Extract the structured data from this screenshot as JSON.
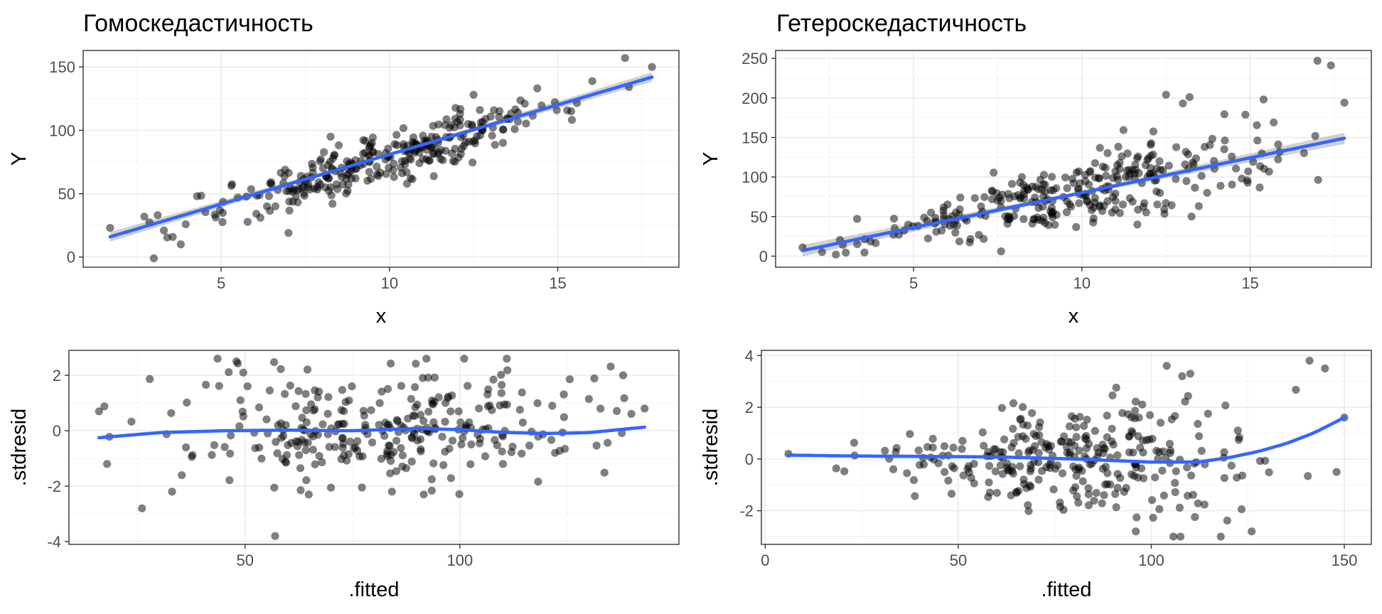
{
  "chart_data": [
    {
      "id": "homo_fit",
      "type": "scatter",
      "title": "Гомоскедастичность",
      "xlabel": "x",
      "ylabel": "Y",
      "xlim": [
        0.9,
        18.6
      ],
      "ylim": [
        -8,
        163
      ],
      "xticks": [
        5,
        10,
        15
      ],
      "yticks": [
        0,
        50,
        100,
        150
      ],
      "grid": true,
      "series": [
        {
          "kind": "points",
          "n": 300,
          "x_range": [
            1.7,
            17.8
          ],
          "trend": "linear",
          "intercept": -2,
          "slope": 8.1,
          "noise_sd": 10,
          "color": "#000000",
          "opacity": 0.5
        },
        {
          "kind": "smooth-line",
          "method": "linear",
          "x": [
            1.7,
            17.8
          ],
          "y": [
            16,
            142
          ],
          "color": "#3366FF",
          "band": true
        }
      ]
    },
    {
      "id": "hetero_fit",
      "type": "scatter",
      "title": "Гетероскедастичность",
      "xlabel": "x",
      "ylabel": "Y",
      "xlim": [
        0.9,
        18.6
      ],
      "ylim": [
        -14,
        260
      ],
      "xticks": [
        5,
        10,
        15
      ],
      "yticks": [
        0,
        50,
        100,
        150,
        200,
        250
      ],
      "grid": true,
      "series": [
        {
          "kind": "points",
          "n": 300,
          "x_range": [
            1.7,
            17.8
          ],
          "trend": "linear",
          "intercept": -7,
          "slope": 8.8,
          "noise": "increasing",
          "color": "#000000",
          "opacity": 0.5
        },
        {
          "kind": "smooth-line",
          "method": "linear",
          "x": [
            1.7,
            17.8
          ],
          "y": [
            7,
            149
          ],
          "color": "#3366FF",
          "band": true
        }
      ]
    },
    {
      "id": "homo_resid",
      "type": "scatter",
      "title": "",
      "xlabel": ".fitted",
      "ylabel": ".stdresid",
      "xlim": [
        9,
        151
      ],
      "ylim": [
        -4.1,
        2.9
      ],
      "xticks": [
        50,
        100
      ],
      "yticks": [
        -4,
        -2,
        0,
        2
      ],
      "grid": true,
      "series": [
        {
          "kind": "points",
          "n": 300,
          "x_range": [
            16,
            143
          ],
          "resid_sd": 1,
          "color": "#000000",
          "opacity": 0.5
        },
        {
          "kind": "smooth-line",
          "method": "loess",
          "x": [
            16,
            30,
            45,
            60,
            75,
            90,
            100,
            110,
            120,
            130,
            143
          ],
          "y": [
            -0.25,
            -0.07,
            0.0,
            0.02,
            0.0,
            0.08,
            0.04,
            -0.06,
            -0.1,
            -0.07,
            0.13
          ],
          "color": "#3366FF"
        }
      ]
    },
    {
      "id": "hetero_resid",
      "type": "scatter",
      "title": "",
      "xlabel": ".fitted",
      "ylabel": ".stdresid",
      "xlim": [
        -1,
        157
      ],
      "ylim": [
        -3.3,
        4.2
      ],
      "xticks": [
        0,
        50,
        100,
        150
      ],
      "yticks": [
        -2,
        0,
        2,
        4
      ],
      "grid": true,
      "series": [
        {
          "kind": "points",
          "n": 300,
          "x_range": [
            6,
            150
          ],
          "resid": "fan-shaped",
          "color": "#000000",
          "opacity": 0.5
        },
        {
          "kind": "smooth-line",
          "method": "loess",
          "x": [
            6,
            20,
            40,
            60,
            80,
            100,
            112,
            120,
            128,
            135,
            142,
            150
          ],
          "y": [
            0.15,
            0.12,
            0.1,
            0.08,
            0.0,
            -0.12,
            -0.12,
            0.05,
            0.3,
            0.6,
            1.0,
            1.6
          ],
          "color": "#3366FF"
        }
      ]
    }
  ]
}
